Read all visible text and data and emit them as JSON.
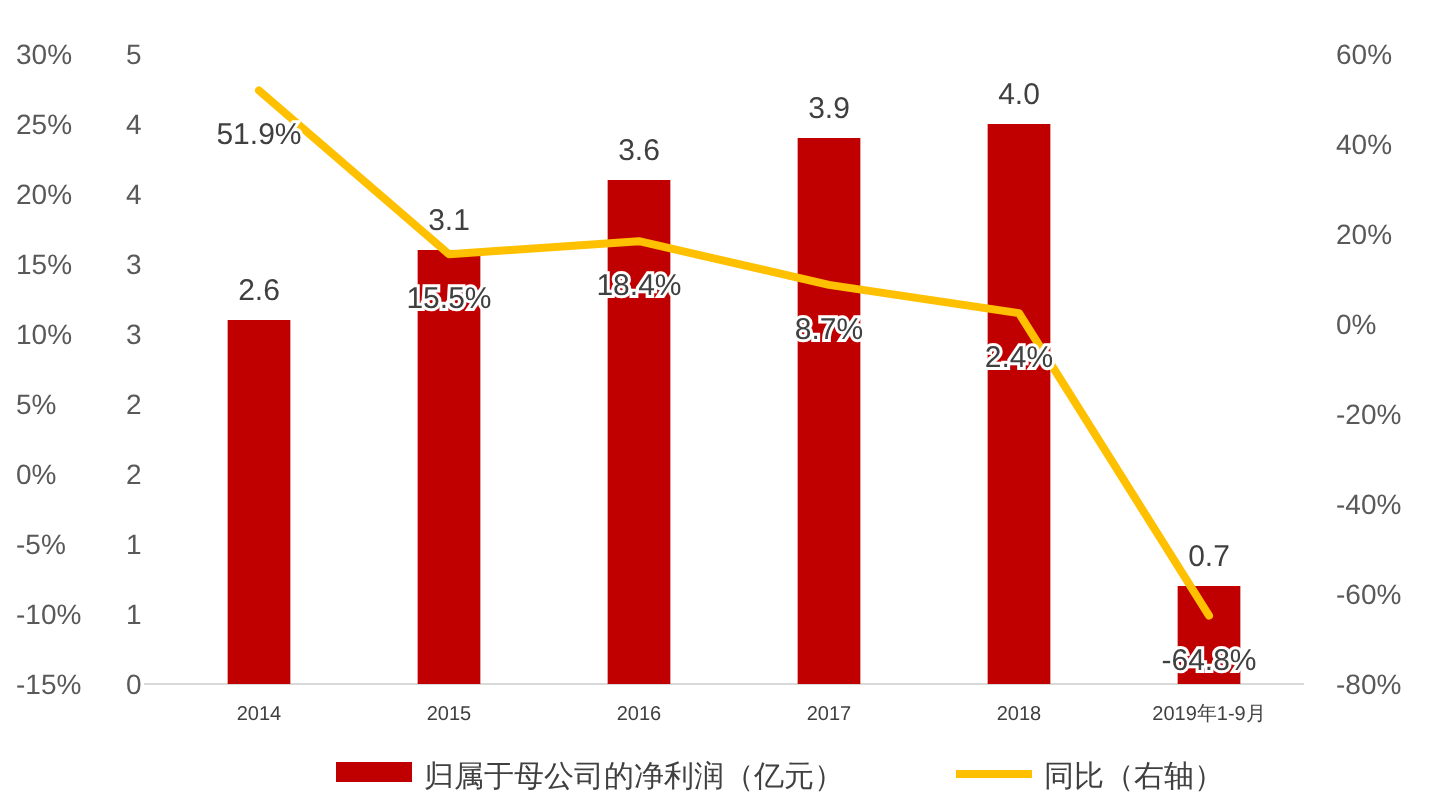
{
  "chart_data": {
    "type": "bar",
    "categories": [
      "2014",
      "2015",
      "2016",
      "2017",
      "2018",
      "2019年1-9月"
    ],
    "series": [
      {
        "name": "归属于母公司的净利润（亿元）",
        "color": "#c00000",
        "values": [
          2.6,
          3.1,
          3.6,
          3.9,
          4.0,
          0.7
        ],
        "value_labels": [
          "2.6",
          "3.1",
          "3.6",
          "3.9",
          "4.0",
          "0.7"
        ]
      },
      {
        "name": "同比（右轴）",
        "type": "line",
        "axis": "y2",
        "color": "#ffc000",
        "values": [
          51.9,
          15.5,
          18.4,
          8.7,
          2.4,
          -64.8
        ],
        "value_labels": [
          "51.9%",
          "15.5%",
          "18.4%",
          "8.7%",
          "2.4%",
          "-64.8%"
        ]
      }
    ],
    "ylim": [
      0,
      4.5
    ],
    "yticks": [
      {
        "value": 0,
        "label": "0"
      },
      {
        "value": 0.5,
        "label": "1"
      },
      {
        "value": 1,
        "label": "1"
      },
      {
        "value": 1.5,
        "label": "2"
      },
      {
        "value": 2,
        "label": "2"
      },
      {
        "value": 2.5,
        "label": "3"
      },
      {
        "value": 3,
        "label": "3"
      },
      {
        "value": 3.5,
        "label": "4"
      },
      {
        "value": 4,
        "label": "4"
      },
      {
        "value": 4.5,
        "label": "5"
      }
    ],
    "y2lim": [
      -80,
      60
    ],
    "y2ticks": [
      {
        "value": -80,
        "label": "-80%"
      },
      {
        "value": -60,
        "label": "-60%"
      },
      {
        "value": -40,
        "label": "-40%"
      },
      {
        "value": -20,
        "label": "-20%"
      },
      {
        "value": 0,
        "label": "0%"
      },
      {
        "value": 20,
        "label": "20%"
      },
      {
        "value": 40,
        "label": "40%"
      },
      {
        "value": 60,
        "label": "60%"
      }
    ],
    "y3lim": [
      -15,
      30
    ],
    "y3ticks": [
      {
        "value": -15,
        "label": "-15%"
      },
      {
        "value": -10,
        "label": "-10%"
      },
      {
        "value": -5,
        "label": "-5%"
      },
      {
        "value": 0,
        "label": "0%"
      },
      {
        "value": 5,
        "label": "5%"
      },
      {
        "value": 10,
        "label": "10%"
      },
      {
        "value": 15,
        "label": "15%"
      },
      {
        "value": 20,
        "label": "20%"
      },
      {
        "value": 25,
        "label": "25%"
      },
      {
        "value": 30,
        "label": "30%"
      }
    ],
    "legend": "bottom",
    "grid": false,
    "marker": "none",
    "line_style": "solid"
  }
}
